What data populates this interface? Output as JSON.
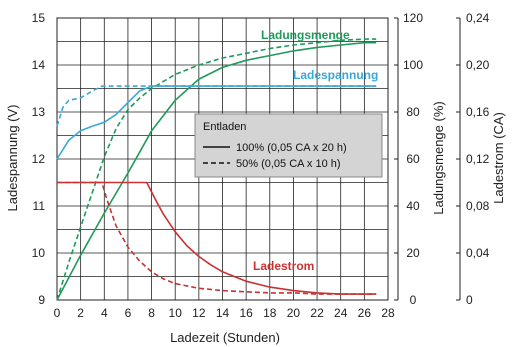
{
  "chart_data": {
    "type": "line",
    "xlabel": "Ladezeit (Stunden)",
    "xticks": [
      "0",
      "2",
      "4",
      "6",
      "8",
      "10",
      "12",
      "14",
      "16",
      "18",
      "20",
      "22",
      "24",
      "26",
      "28"
    ],
    "xlim": [
      0,
      28
    ],
    "axes": {
      "voltage": {
        "label": "Ladespannung (V)",
        "ticks": [
          "9",
          "10",
          "11",
          "12",
          "13",
          "14",
          "15"
        ],
        "range": [
          9,
          15
        ]
      },
      "charge": {
        "label": "Ladungsmenge (%)",
        "ticks": [
          "0",
          "20",
          "40",
          "60",
          "80",
          "100",
          "120"
        ],
        "range": [
          0,
          120
        ]
      },
      "current": {
        "label": "Ladestrom (CA)",
        "ticks": [
          "0",
          "0,04",
          "0,08",
          "0,12",
          "0,16",
          "0,20",
          "0,24"
        ],
        "range": [
          0,
          0.24
        ]
      }
    },
    "grid": true,
    "legend": {
      "title": "Entladen",
      "entries": [
        "100% (0,05 CA x 20 h)",
        "50% (0,05 CA x 10 h)"
      ],
      "position": "center-right"
    },
    "series": [
      {
        "name": "Ladungsmenge",
        "axis": "charge",
        "style": "solid",
        "color": "#1e9a5a",
        "x": [
          0,
          2,
          4,
          6,
          8,
          10,
          12,
          14,
          16,
          18,
          20,
          22,
          24,
          26,
          27
        ],
        "y": [
          0,
          19,
          37,
          54,
          72,
          85,
          94,
          99,
          102,
          104,
          106,
          107.5,
          108.5,
          109.5,
          109.5
        ]
      },
      {
        "name": "Ladungsmenge",
        "axis": "charge",
        "style": "dashed",
        "color": "#1e9a5a",
        "x": [
          0,
          1,
          2,
          3,
          4,
          5,
          6,
          7,
          8,
          10,
          12,
          14,
          16,
          18,
          20,
          22,
          24,
          26,
          27
        ],
        "y": [
          0,
          16,
          31,
          46,
          61,
          73,
          81,
          86,
          90,
          96,
          100,
          103,
          105,
          107,
          108.5,
          109.5,
          110.5,
          111,
          111
        ]
      },
      {
        "name": "Ladespannung",
        "axis": "voltage",
        "style": "solid",
        "color": "#3aa8d4",
        "x": [
          0,
          1,
          2,
          3,
          4,
          5,
          6,
          7,
          8,
          27
        ],
        "y": [
          12.0,
          12.4,
          12.6,
          12.7,
          12.78,
          12.95,
          13.2,
          13.45,
          13.55,
          13.55
        ]
      },
      {
        "name": "Ladespannung",
        "axis": "voltage",
        "style": "dashed",
        "color": "#3aa8d4",
        "x": [
          0,
          0.5,
          1,
          2,
          3,
          3.8,
          4.2,
          27
        ],
        "y": [
          12.7,
          13.1,
          13.25,
          13.3,
          13.45,
          13.55,
          13.55,
          13.55
        ]
      },
      {
        "name": "Ladestrom",
        "axis": "current",
        "style": "solid",
        "color": "#c83232",
        "x": [
          0,
          7.6,
          8.3,
          9,
          10,
          11,
          12,
          13,
          14,
          16,
          18,
          20,
          22,
          24,
          27
        ],
        "y": [
          0.1,
          0.1,
          0.086,
          0.073,
          0.058,
          0.046,
          0.037,
          0.03,
          0.024,
          0.016,
          0.011,
          0.008,
          0.006,
          0.005,
          0.005
        ]
      },
      {
        "name": "Ladestrom",
        "axis": "current",
        "style": "dashed",
        "color": "#c83232",
        "x": [
          0,
          3.8,
          4.2,
          5,
          6,
          7,
          8,
          9,
          10,
          12,
          14,
          16,
          18,
          20,
          22,
          24,
          27
        ],
        "y": [
          0.1,
          0.1,
          0.086,
          0.063,
          0.045,
          0.033,
          0.024,
          0.018,
          0.014,
          0.01,
          0.008,
          0.007,
          0.006,
          0.006,
          0.005,
          0.005,
          0.005
        ]
      }
    ]
  }
}
